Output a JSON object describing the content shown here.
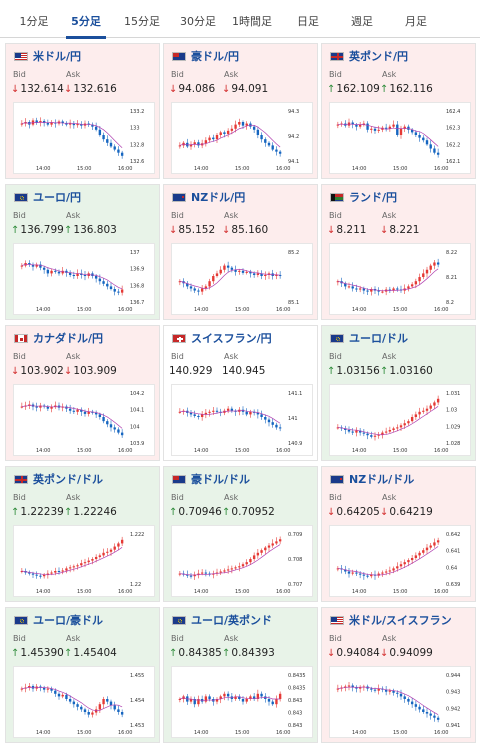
{
  "tabs": [
    {
      "label": "1分足",
      "active": false
    },
    {
      "label": "5分足",
      "active": true
    },
    {
      "label": "15分足",
      "active": false
    },
    {
      "label": "30分足",
      "active": false
    },
    {
      "label": "1時間足",
      "active": false
    },
    {
      "label": "日足",
      "active": false
    },
    {
      "label": "週足",
      "active": false
    },
    {
      "label": "月足",
      "active": false
    }
  ],
  "labels": {
    "bid": "Bid",
    "ask": "Ask"
  },
  "colors": {
    "down": "#d32f2f",
    "up": "#2e8b3a",
    "link": "#1b4f9c",
    "ma": "#b040b0",
    "bull": "#e53935",
    "bear": "#1565c0"
  },
  "cards": [
    {
      "pair": "米ドル/円",
      "flag": "us",
      "bid": "132.614",
      "ask": "132.616",
      "dir": "down",
      "bg": "down",
      "yticks": [
        "133.2",
        "133",
        "132.8",
        "132.6"
      ],
      "xticks": [
        "14:00",
        "15:00",
        "16:00"
      ],
      "trend": [
        0.72,
        0.75,
        0.7,
        0.78,
        0.74,
        0.77,
        0.73,
        0.7,
        0.74,
        0.72,
        0.76,
        0.73,
        0.7,
        0.72,
        0.69,
        0.71,
        0.68,
        0.72,
        0.7,
        0.66,
        0.6,
        0.5,
        0.42,
        0.35,
        0.28,
        0.22,
        0.16,
        0.1
      ]
    },
    {
      "pair": "豪ドル/円",
      "flag": "au",
      "bid": "94.086",
      "ask": "94.091",
      "dir": "down",
      "bg": "down",
      "yticks": [
        "94.3",
        "94.2",
        "94.1"
      ],
      "xticks": [
        "14:00",
        "15:00",
        "16:00"
      ],
      "trend": [
        0.3,
        0.35,
        0.28,
        0.32,
        0.36,
        0.3,
        0.34,
        0.4,
        0.45,
        0.42,
        0.5,
        0.55,
        0.52,
        0.58,
        0.62,
        0.7,
        0.75,
        0.68,
        0.72,
        0.66,
        0.6,
        0.5,
        0.42,
        0.35,
        0.3,
        0.22,
        0.18,
        0.14
      ]
    },
    {
      "pair": "英ポンド/円",
      "flag": "uk",
      "bid": "162.109",
      "ask": "162.116",
      "dir": "up",
      "bg": "down",
      "yticks": [
        "162.4",
        "162.3",
        "162.2",
        "162.1"
      ],
      "xticks": [
        "14:00",
        "15:00",
        "16:00"
      ],
      "trend": [
        0.7,
        0.72,
        0.68,
        0.74,
        0.7,
        0.66,
        0.7,
        0.72,
        0.6,
        0.62,
        0.58,
        0.6,
        0.64,
        0.62,
        0.66,
        0.7,
        0.5,
        0.62,
        0.66,
        0.6,
        0.55,
        0.5,
        0.45,
        0.4,
        0.32,
        0.24,
        0.16,
        0.12
      ]
    },
    {
      "pair": "ユーロ/円",
      "flag": "eu",
      "bid": "136.799",
      "ask": "136.803",
      "dir": "up",
      "bg": "up",
      "yticks": [
        "137",
        "136.9",
        "136.8",
        "136.7"
      ],
      "xticks": [
        "14:00",
        "15:00",
        "16:00"
      ],
      "trend": [
        0.7,
        0.75,
        0.72,
        0.68,
        0.72,
        0.66,
        0.62,
        0.55,
        0.6,
        0.58,
        0.55,
        0.6,
        0.56,
        0.52,
        0.5,
        0.55,
        0.52,
        0.5,
        0.55,
        0.5,
        0.45,
        0.4,
        0.35,
        0.3,
        0.25,
        0.2,
        0.18,
        0.24
      ]
    },
    {
      "pair": "NZドル/円",
      "flag": "nz",
      "bid": "85.152",
      "ask": "85.160",
      "dir": "down",
      "bg": "down",
      "yticks": [
        "85.2",
        "85.1"
      ],
      "xticks": [
        "14:00",
        "15:00",
        "16:00"
      ],
      "trend": [
        0.4,
        0.36,
        0.3,
        0.26,
        0.22,
        0.2,
        0.26,
        0.3,
        0.4,
        0.5,
        0.55,
        0.62,
        0.7,
        0.66,
        0.62,
        0.58,
        0.6,
        0.56,
        0.58,
        0.55,
        0.52,
        0.55,
        0.5,
        0.52,
        0.55,
        0.5,
        0.52,
        0.5
      ]
    },
    {
      "pair": "ランド/円",
      "flag": "za",
      "bid": "8.211",
      "ask": "8.221",
      "dir": "down",
      "bg": "down",
      "yticks": [
        "8.22",
        "8.21",
        "8.2"
      ],
      "xticks": [
        "14:00",
        "15:00",
        "16:00"
      ],
      "trend": [
        0.4,
        0.36,
        0.3,
        0.3,
        0.26,
        0.24,
        0.26,
        0.22,
        0.2,
        0.25,
        0.22,
        0.2,
        0.2,
        0.24,
        0.22,
        0.26,
        0.24,
        0.22,
        0.26,
        0.3,
        0.34,
        0.4,
        0.48,
        0.55,
        0.62,
        0.7,
        0.76,
        0.72
      ]
    },
    {
      "pair": "カナダドル/円",
      "flag": "ca",
      "bid": "103.902",
      "ask": "103.909",
      "dir": "down",
      "bg": "down",
      "yticks": [
        "104.2",
        "104.1",
        "104",
        "103.9"
      ],
      "xticks": [
        "14:00",
        "15:00",
        "16:00"
      ],
      "trend": [
        0.7,
        0.72,
        0.74,
        0.7,
        0.68,
        0.72,
        0.7,
        0.66,
        0.7,
        0.72,
        0.68,
        0.7,
        0.66,
        0.62,
        0.6,
        0.64,
        0.6,
        0.56,
        0.6,
        0.58,
        0.55,
        0.5,
        0.42,
        0.36,
        0.3,
        0.26,
        0.2,
        0.15
      ]
    },
    {
      "pair": "スイスフラン/円",
      "flag": "ch",
      "bid": "140.929",
      "ask": "140.945",
      "dir": "none",
      "bg": "neutral",
      "yticks": [
        "141.1",
        "141",
        "140.9"
      ],
      "xticks": [
        "14:00",
        "15:00",
        "16:00"
      ],
      "trend": [
        0.6,
        0.62,
        0.58,
        0.55,
        0.52,
        0.5,
        0.55,
        0.58,
        0.6,
        0.62,
        0.6,
        0.58,
        0.62,
        0.66,
        0.62,
        0.6,
        0.64,
        0.6,
        0.55,
        0.6,
        0.58,
        0.55,
        0.5,
        0.45,
        0.4,
        0.35,
        0.3,
        0.28
      ]
    },
    {
      "pair": "ユーロ/ドル",
      "flag": "eu",
      "bid": "1.03156",
      "ask": "1.03160",
      "dir": "up",
      "bg": "up",
      "yticks": [
        "1.031",
        "1.03",
        "1.029",
        "1.028"
      ],
      "xticks": [
        "14:00",
        "15:00",
        "16:00"
      ],
      "trend": [
        0.3,
        0.28,
        0.25,
        0.22,
        0.2,
        0.24,
        0.2,
        0.18,
        0.15,
        0.12,
        0.14,
        0.16,
        0.2,
        0.22,
        0.25,
        0.28,
        0.3,
        0.34,
        0.38,
        0.42,
        0.5,
        0.55,
        0.6,
        0.62,
        0.66,
        0.72,
        0.78,
        0.85
      ]
    },
    {
      "pair": "英ポンド/ドル",
      "flag": "uk",
      "bid": "1.22239",
      "ask": "1.22246",
      "dir": "up",
      "bg": "up",
      "yticks": [
        "1.222",
        "1.22"
      ],
      "xticks": [
        "14:00",
        "15:00",
        "16:00"
      ],
      "trend": [
        0.25,
        0.22,
        0.2,
        0.18,
        0.16,
        0.15,
        0.18,
        0.2,
        0.22,
        0.25,
        0.24,
        0.26,
        0.3,
        0.32,
        0.34,
        0.36,
        0.4,
        0.42,
        0.45,
        0.48,
        0.52,
        0.55,
        0.6,
        0.62,
        0.66,
        0.72,
        0.78,
        0.85
      ]
    },
    {
      "pair": "豪ドル/ドル",
      "flag": "au",
      "bid": "0.70946",
      "ask": "0.70952",
      "dir": "up",
      "bg": "up",
      "yticks": [
        "0.709",
        "0.708",
        "0.707"
      ],
      "xticks": [
        "14:00",
        "15:00",
        "16:00"
      ],
      "trend": [
        0.2,
        0.18,
        0.16,
        0.15,
        0.18,
        0.2,
        0.22,
        0.2,
        0.18,
        0.2,
        0.22,
        0.24,
        0.26,
        0.28,
        0.3,
        0.32,
        0.34,
        0.38,
        0.42,
        0.48,
        0.55,
        0.6,
        0.65,
        0.7,
        0.74,
        0.78,
        0.82,
        0.86
      ]
    },
    {
      "pair": "NZドル/ドル",
      "flag": "nz",
      "bid": "0.64205",
      "ask": "0.64219",
      "dir": "down",
      "bg": "down",
      "yticks": [
        "0.642",
        "0.641",
        "0.64",
        "0.639"
      ],
      "xticks": [
        "14:00",
        "15:00",
        "16:00"
      ],
      "trend": [
        0.3,
        0.28,
        0.24,
        0.2,
        0.22,
        0.2,
        0.18,
        0.16,
        0.15,
        0.18,
        0.16,
        0.2,
        0.22,
        0.24,
        0.26,
        0.3,
        0.34,
        0.38,
        0.42,
        0.46,
        0.5,
        0.55,
        0.6,
        0.65,
        0.7,
        0.74,
        0.8,
        0.84
      ]
    },
    {
      "pair": "ユーロ/豪ドル",
      "flag": "eu",
      "bid": "1.45390",
      "ask": "1.45404",
      "dir": "up",
      "bg": "up",
      "yticks": [
        "1.455",
        "1.454",
        "1.453"
      ],
      "xticks": [
        "14:00",
        "15:00",
        "16:00"
      ],
      "trend": [
        0.7,
        0.72,
        0.75,
        0.7,
        0.74,
        0.72,
        0.68,
        0.7,
        0.66,
        0.6,
        0.55,
        0.58,
        0.5,
        0.45,
        0.4,
        0.35,
        0.3,
        0.25,
        0.2,
        0.24,
        0.3,
        0.4,
        0.5,
        0.45,
        0.38,
        0.3,
        0.25,
        0.2
      ]
    },
    {
      "pair": "ユーロ/英ポンド",
      "flag": "eu",
      "bid": "0.84385",
      "ask": "0.84393",
      "dir": "up",
      "bg": "up",
      "yticks": [
        "0.8435",
        "0.8435",
        "0.843",
        "0.843",
        "0.843"
      ],
      "xticks": [
        "14:00",
        "15:00",
        "16:00"
      ],
      "trend": [
        0.5,
        0.55,
        0.45,
        0.5,
        0.4,
        0.5,
        0.45,
        0.55,
        0.5,
        0.45,
        0.5,
        0.55,
        0.6,
        0.55,
        0.5,
        0.55,
        0.5,
        0.45,
        0.5,
        0.55,
        0.5,
        0.6,
        0.55,
        0.5,
        0.45,
        0.4,
        0.5,
        0.6
      ]
    },
    {
      "pair": "米ドル/スイスフラン",
      "flag": "us",
      "bid": "0.94084",
      "ask": "0.94099",
      "dir": "down",
      "bg": "down",
      "yticks": [
        "0.944",
        "0.943",
        "0.942",
        "0.941"
      ],
      "xticks": [
        "14:00",
        "15:00",
        "16:00"
      ],
      "trend": [
        0.7,
        0.72,
        0.74,
        0.76,
        0.72,
        0.7,
        0.72,
        0.74,
        0.7,
        0.68,
        0.66,
        0.7,
        0.68,
        0.64,
        0.66,
        0.62,
        0.6,
        0.55,
        0.5,
        0.45,
        0.4,
        0.35,
        0.3,
        0.25,
        0.22,
        0.18,
        0.14,
        0.1
      ]
    }
  ]
}
